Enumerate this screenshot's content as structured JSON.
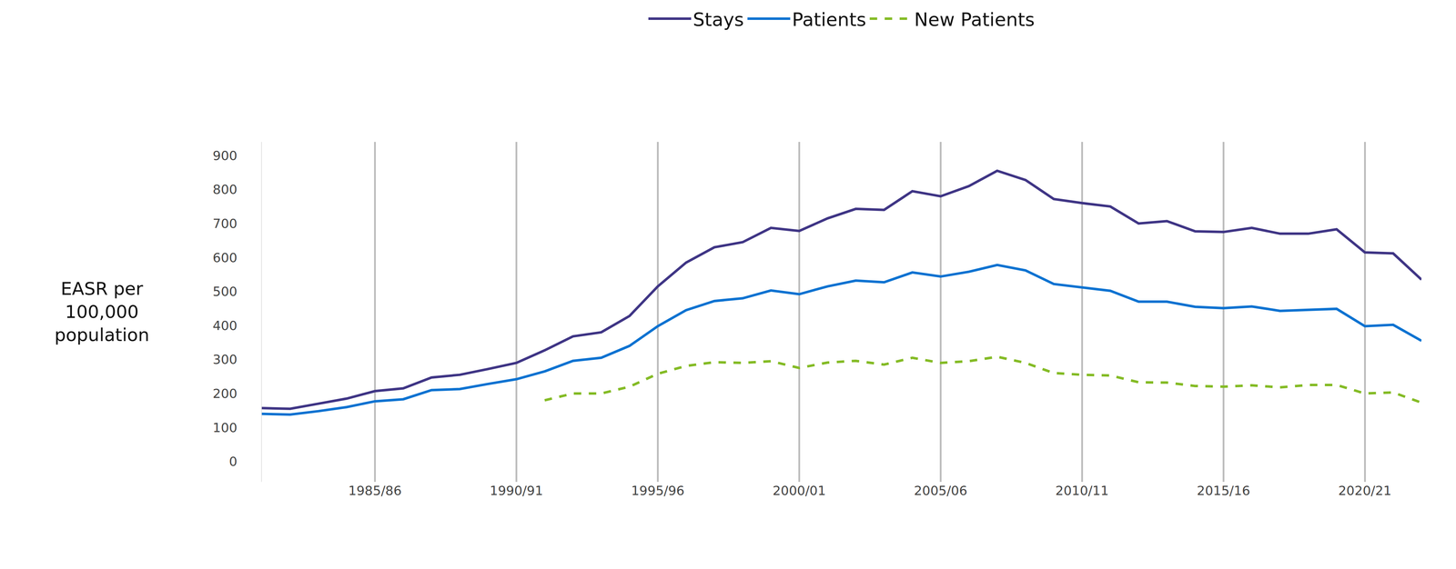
{
  "chart_data": {
    "type": "line",
    "y_label": "EASR per 100,000 population",
    "categories": [
      null,
      null,
      null,
      null,
      "1985/86",
      null,
      null,
      null,
      null,
      "1990/91",
      null,
      null,
      null,
      null,
      "1995/96",
      null,
      null,
      null,
      null,
      "2000/01",
      null,
      null,
      null,
      null,
      "2005/06",
      null,
      null,
      null,
      null,
      "2010/11",
      null,
      null,
      null,
      null,
      "2015/16",
      null,
      null,
      null,
      null,
      "2020/21",
      null,
      null
    ],
    "series": [
      {
        "name": "Stays",
        "color": "#3f3585",
        "line_style": "solid",
        "values": [
          157,
          155,
          170,
          185,
          207,
          215,
          247,
          255,
          272,
          290,
          327,
          368,
          380,
          428,
          515,
          585,
          630,
          645,
          687,
          678,
          715,
          743,
          740,
          795,
          780,
          810,
          855,
          828,
          772,
          760,
          750,
          700,
          707,
          677,
          675,
          687,
          670,
          670,
          683,
          615,
          612,
          535
        ]
      },
      {
        "name": "Patients",
        "color": "#0b72d1",
        "line_style": "solid",
        "values": [
          140,
          138,
          148,
          160,
          177,
          183,
          210,
          213,
          228,
          242,
          265,
          296,
          305,
          340,
          398,
          445,
          472,
          480,
          503,
          492,
          515,
          532,
          527,
          556,
          544,
          558,
          578,
          562,
          522,
          512,
          502,
          470,
          470,
          455,
          451,
          456,
          443,
          446,
          449,
          398,
          402,
          355
        ]
      },
      {
        "name": "New Patients",
        "color": "#84bb25",
        "line_style": "dash",
        "values": [
          null,
          null,
          null,
          null,
          null,
          null,
          null,
          null,
          null,
          null,
          180,
          200,
          200,
          220,
          258,
          281,
          292,
          290,
          295,
          275,
          291,
          296,
          285,
          305,
          290,
          295,
          308,
          290,
          260,
          255,
          253,
          233,
          232,
          222,
          220,
          224,
          218,
          225,
          225,
          200,
          203,
          173
        ]
      }
    ],
    "ylim": [
      -60,
      940
    ],
    "yticks": [
      0,
      100,
      200,
      300,
      400,
      500,
      600,
      700,
      800,
      900
    ],
    "grid": "x",
    "legend": "top"
  }
}
